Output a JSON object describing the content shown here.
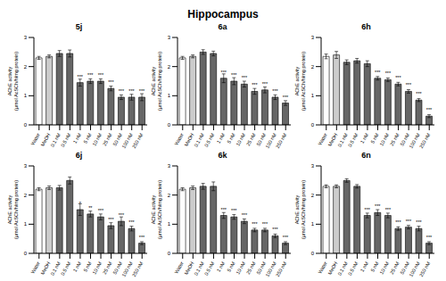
{
  "title": "Hippocampus",
  "chart_data": [
    {
      "type": "bar",
      "title": "5j",
      "y_label": [
        "AChE activity",
        "(µmol AcSCh/h/mg protein)"
      ],
      "categories": [
        "Water",
        "MeOH",
        "0.1 nM",
        "0.5 nM",
        "1 nM",
        "5 nM",
        "10 nM",
        "25 nM",
        "50 nM",
        "100 nM",
        "250 nM"
      ],
      "values": [
        2.3,
        2.35,
        2.45,
        2.45,
        1.45,
        1.5,
        1.5,
        1.25,
        0.95,
        0.95,
        0.95
      ],
      "errors": [
        0.05,
        0.05,
        0.1,
        0.12,
        0.12,
        0.08,
        0.08,
        0.08,
        0.08,
        0.1,
        0.12
      ],
      "annotations": [
        null,
        null,
        null,
        null,
        "***",
        "***",
        "***",
        "***",
        "***",
        "***",
        "***"
      ],
      "colors": [
        "#ffffff",
        "#cccccc",
        "#666666",
        "#666666",
        "#666666",
        "#666666",
        "#666666",
        "#666666",
        "#666666",
        "#666666",
        "#666666"
      ],
      "ylim": [
        0,
        3
      ],
      "yticks": [
        0,
        1,
        2,
        3
      ],
      "grid": false
    },
    {
      "type": "bar",
      "title": "6a",
      "y_label": [
        "AChE activity",
        "(µmol AcSCh/h/mg protein)"
      ],
      "categories": [
        "Water",
        "MeOH",
        "0.1 nM",
        "0.5 nM",
        "1 nM",
        "5 nM",
        "10 nM",
        "25 nM",
        "50 nM",
        "100 nM",
        "250 nM"
      ],
      "values": [
        2.3,
        2.35,
        2.5,
        2.45,
        1.6,
        1.5,
        1.4,
        1.15,
        1.2,
        0.95,
        0.75
      ],
      "errors": [
        0.05,
        0.05,
        0.08,
        0.08,
        0.15,
        0.12,
        0.1,
        0.1,
        0.1,
        0.08,
        0.08
      ],
      "annotations": [
        null,
        null,
        null,
        null,
        "***",
        "***",
        "***",
        "***",
        "***",
        "***",
        "***"
      ],
      "colors": [
        "#ffffff",
        "#cccccc",
        "#666666",
        "#666666",
        "#666666",
        "#666666",
        "#666666",
        "#666666",
        "#666666",
        "#666666",
        "#666666"
      ],
      "ylim": [
        0,
        3
      ],
      "yticks": [
        0,
        1,
        2,
        3
      ],
      "grid": false
    },
    {
      "type": "bar",
      "title": "6h",
      "y_label": [
        "AChE activity",
        "(µmol AcSCh/h/mg protein)"
      ],
      "categories": [
        "Water",
        "MeOH",
        "0.1 nM",
        "0.5 nM",
        "1 nM",
        "5 nM",
        "10 nM",
        "25 nM",
        "50 nM",
        "100 nM",
        "250 nM"
      ],
      "values": [
        2.35,
        2.4,
        2.15,
        2.2,
        2.1,
        1.6,
        1.55,
        1.4,
        1.15,
        0.85,
        0.3
      ],
      "errors": [
        0.08,
        0.12,
        0.08,
        0.08,
        0.1,
        0.06,
        0.06,
        0.06,
        0.06,
        0.05,
        0.05
      ],
      "annotations": [
        null,
        null,
        null,
        null,
        null,
        "***",
        "***",
        "***",
        "***",
        "***",
        "***"
      ],
      "colors": [
        "#ffffff",
        "#cccccc",
        "#666666",
        "#666666",
        "#666666",
        "#666666",
        "#666666",
        "#666666",
        "#666666",
        "#666666",
        "#666666"
      ],
      "ylim": [
        0,
        3
      ],
      "yticks": [
        0,
        1,
        2,
        3
      ],
      "grid": false
    },
    {
      "type": "bar",
      "title": "6j",
      "y_label": [
        "AChE activity",
        "(µmol AcSCh/h/mg protein)"
      ],
      "categories": [
        "Water",
        "MeOH",
        "0.1 nM",
        "0.5 nM",
        "1 nM",
        "5 nM",
        "10 nM",
        "25 nM",
        "50 nM",
        "100 nM",
        "250 nM"
      ],
      "values": [
        2.2,
        2.25,
        2.25,
        2.5,
        1.5,
        1.35,
        1.25,
        0.95,
        1.1,
        0.85,
        0.35
      ],
      "errors": [
        0.05,
        0.06,
        0.08,
        0.12,
        0.2,
        0.1,
        0.1,
        0.1,
        0.15,
        0.08,
        0.05
      ],
      "annotations": [
        null,
        null,
        null,
        null,
        "*",
        "**",
        "***",
        "***",
        "***",
        "***",
        "***"
      ],
      "colors": [
        "#ffffff",
        "#cccccc",
        "#666666",
        "#666666",
        "#666666",
        "#666666",
        "#666666",
        "#666666",
        "#666666",
        "#666666",
        "#666666"
      ],
      "ylim": [
        0,
        3
      ],
      "yticks": [
        0,
        1,
        2,
        3
      ],
      "grid": false
    },
    {
      "type": "bar",
      "title": "6k",
      "y_label": [
        "AChE activity",
        "(µmol AcSCh/h/mg protein)"
      ],
      "categories": [
        "Water",
        "MeOH",
        "0.1 nM",
        "0.5 nM",
        "1 nM",
        "5 nM",
        "10 nM",
        "25 nM",
        "50 nM",
        "100 nM",
        "250 nM"
      ],
      "values": [
        2.2,
        2.25,
        2.3,
        2.3,
        1.3,
        1.25,
        1.1,
        0.8,
        0.8,
        0.6,
        0.35
      ],
      "errors": [
        0.05,
        0.06,
        0.1,
        0.15,
        0.1,
        0.08,
        0.08,
        0.06,
        0.06,
        0.06,
        0.05
      ],
      "annotations": [
        null,
        null,
        null,
        null,
        "***",
        "***",
        "***",
        "***",
        "***",
        "***",
        "***"
      ],
      "colors": [
        "#ffffff",
        "#cccccc",
        "#666666",
        "#666666",
        "#666666",
        "#666666",
        "#666666",
        "#666666",
        "#666666",
        "#666666",
        "#666666"
      ],
      "ylim": [
        0,
        3
      ],
      "yticks": [
        0,
        1,
        2,
        3
      ],
      "grid": false
    },
    {
      "type": "bar",
      "title": "6n",
      "y_label": [
        "AChE activity",
        "(µmol AcSCh/h/mg protein)"
      ],
      "categories": [
        "Water",
        "MeOH",
        "0.1 nM",
        "0.5 nM",
        "1 nM",
        "5 nM",
        "10 nM",
        "25 nM",
        "50 nM",
        "100 nM",
        "250 nM"
      ],
      "values": [
        2.3,
        2.3,
        2.5,
        2.3,
        1.3,
        1.4,
        1.3,
        0.85,
        0.9,
        0.85,
        0.35
      ],
      "errors": [
        0.05,
        0.05,
        0.06,
        0.06,
        0.08,
        0.1,
        0.08,
        0.06,
        0.06,
        0.08,
        0.05
      ],
      "annotations": [
        null,
        null,
        null,
        null,
        "***",
        "***",
        "***",
        "***",
        "***",
        "***",
        "***"
      ],
      "colors": [
        "#ffffff",
        "#cccccc",
        "#666666",
        "#666666",
        "#666666",
        "#666666",
        "#666666",
        "#666666",
        "#666666",
        "#666666",
        "#666666"
      ],
      "ylim": [
        0,
        3
      ],
      "yticks": [
        0,
        1,
        2,
        3
      ],
      "grid": false
    }
  ]
}
